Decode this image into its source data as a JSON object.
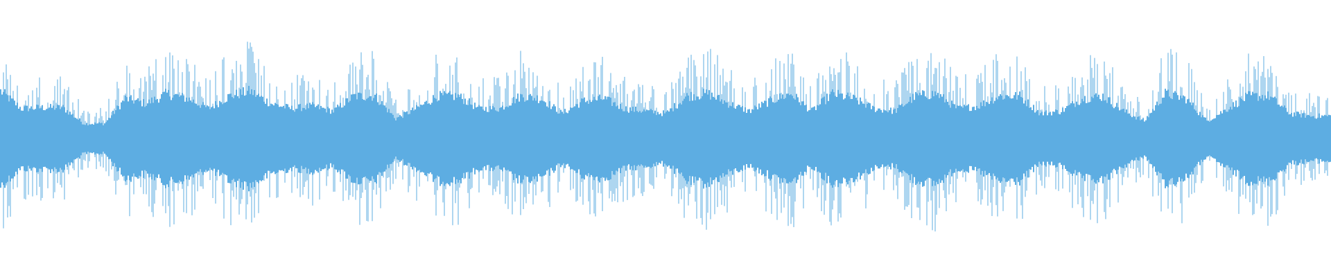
{
  "waveform": {
    "color": "#5DADE2",
    "background": "#FFFFFF",
    "amplitude_envelope": [
      0.95,
      0.6,
      0.62,
      0.62,
      0.3,
      0.3,
      0.8,
      0.7,
      0.9,
      0.8,
      0.6,
      0.85,
      0.95,
      0.7,
      0.6,
      0.65,
      0.55,
      0.85,
      0.85,
      0.4,
      0.6,
      0.85,
      0.85,
      0.6,
      0.6,
      0.85,
      0.8,
      0.5,
      0.75,
      0.8,
      0.6,
      0.55,
      0.5,
      0.85,
      0.9,
      0.7,
      0.55,
      0.75,
      0.9,
      0.55,
      0.9,
      0.8,
      0.6,
      0.55,
      0.85,
      0.9,
      0.6,
      0.65,
      0.85,
      0.85,
      0.5,
      0.55,
      0.8,
      0.85,
      0.55,
      0.35,
      0.9,
      0.8,
      0.35,
      0.6,
      0.85,
      0.85,
      0.5,
      0.45
    ]
  }
}
